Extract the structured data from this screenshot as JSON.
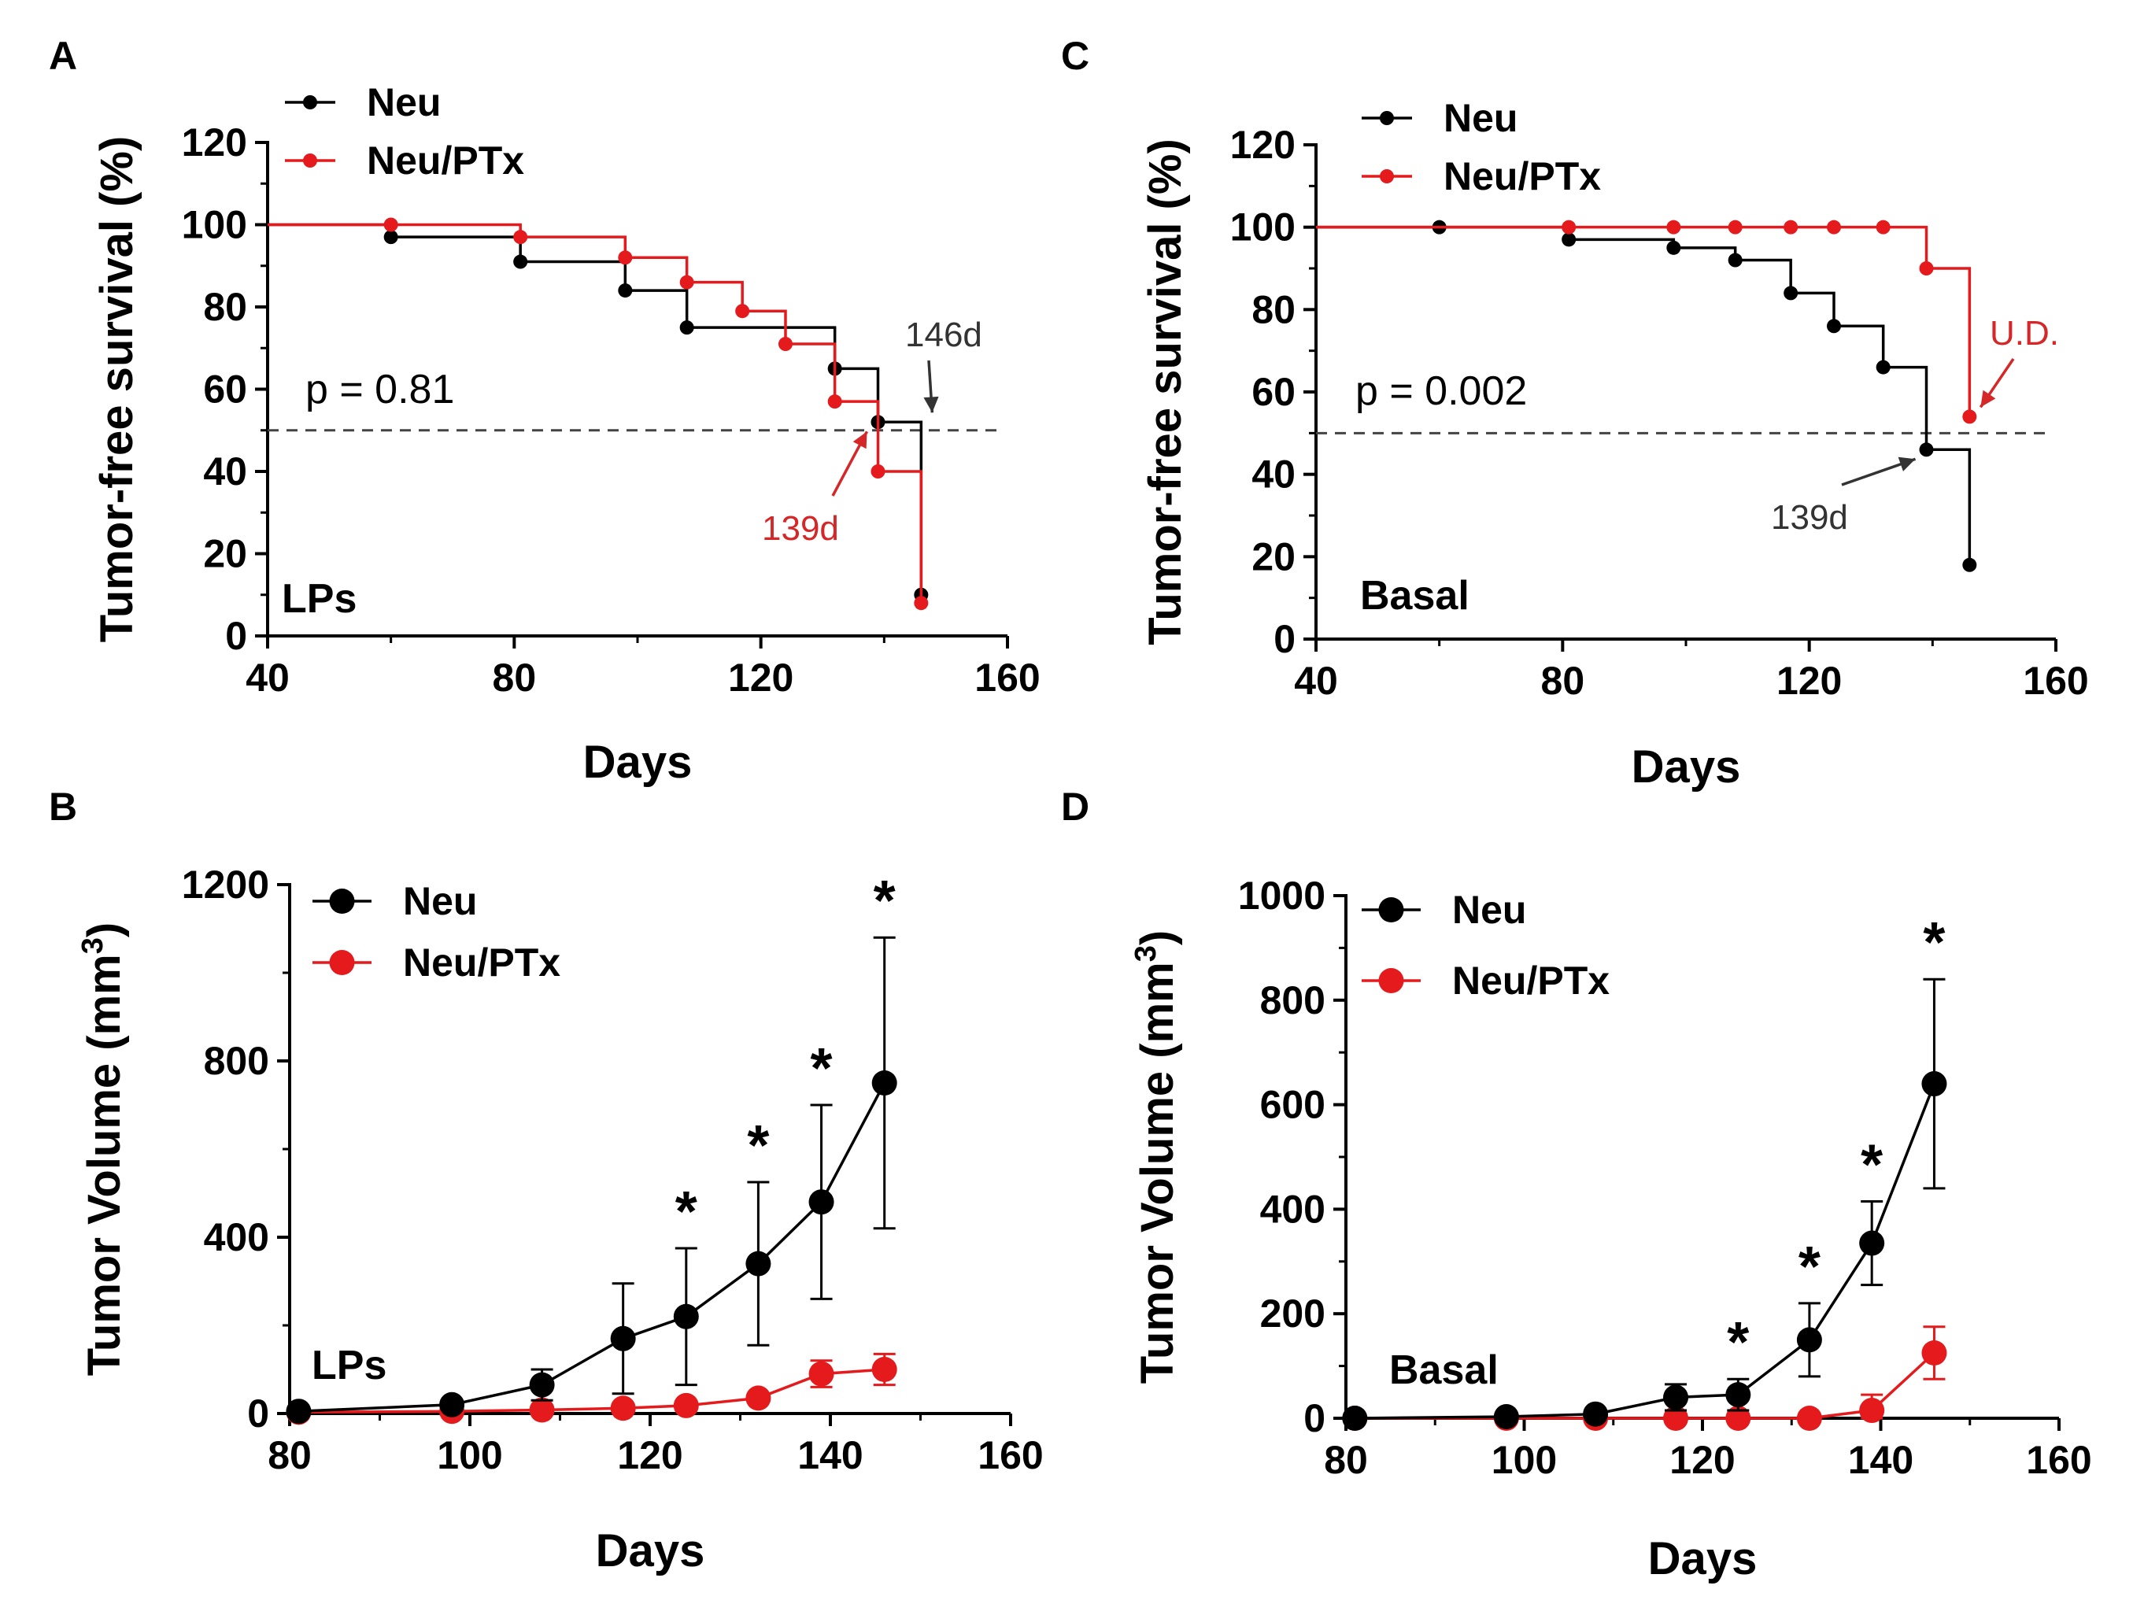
{
  "colors": {
    "neu": "#000000",
    "neu_ptx": "#e41a1c",
    "ref_line": "#444444",
    "annot_dark": "#333333",
    "annot_red": "#d62728"
  },
  "chart_data": [
    {
      "panel": "A",
      "type": "line",
      "style": "kaplan-meier step",
      "xlabel": "Days",
      "ylabel": "Tumor-free survival (%)",
      "xlim": [
        40,
        160
      ],
      "ylim": [
        0,
        120
      ],
      "xticks": [
        40,
        80,
        120,
        160
      ],
      "yticks": [
        0,
        20,
        40,
        60,
        80,
        100,
        120
      ],
      "legend": [
        "Neu",
        "Neu/PTx"
      ],
      "legend_position": "top-left",
      "reference_line_y": 50,
      "stat": "p = 0.81",
      "group_label": "LPs",
      "series": [
        {
          "name": "Neu",
          "color_key": "neu",
          "x": [
            60,
            81,
            98,
            108,
            132,
            139,
            146
          ],
          "y": [
            97,
            91,
            84,
            75,
            65,
            52,
            10
          ],
          "start": [
            40,
            100
          ]
        },
        {
          "name": "Neu/PTx",
          "color_key": "neu_ptx",
          "x": [
            60,
            81,
            98,
            108,
            117,
            124,
            132,
            139,
            146
          ],
          "y": [
            100,
            97,
            92,
            86,
            79,
            71,
            57,
            40,
            8
          ],
          "start": [
            40,
            100
          ]
        }
      ],
      "annotations": [
        {
          "text": "146d",
          "color_key": "annot_dark",
          "point": [
            146,
            52
          ]
        },
        {
          "text": "139d",
          "color_key": "annot_red",
          "point": [
            139,
            52
          ]
        }
      ]
    },
    {
      "panel": "C",
      "type": "line",
      "style": "kaplan-meier step",
      "xlabel": "Days",
      "ylabel": "Tumor-free survival (%)",
      "xlim": [
        40,
        160
      ],
      "ylim": [
        0,
        120
      ],
      "xticks": [
        40,
        80,
        120,
        160
      ],
      "yticks": [
        0,
        20,
        40,
        60,
        80,
        100,
        120
      ],
      "legend": [
        "Neu",
        "Neu/PTx"
      ],
      "legend_position": "top-left",
      "reference_line_y": 50,
      "stat": "p = 0.002",
      "group_label": "Basal",
      "series": [
        {
          "name": "Neu",
          "color_key": "neu",
          "x": [
            60,
            81,
            98,
            108,
            117,
            124,
            132,
            139,
            146
          ],
          "y": [
            100,
            97,
            95,
            92,
            84,
            76,
            66,
            46,
            18
          ],
          "start": [
            40,
            100
          ]
        },
        {
          "name": "Neu/PTx",
          "color_key": "neu_ptx",
          "x": [
            81,
            98,
            108,
            117,
            124,
            132,
            139,
            146
          ],
          "y": [
            100,
            100,
            100,
            100,
            100,
            100,
            90,
            54
          ],
          "start": [
            40,
            100
          ]
        }
      ],
      "annotations": [
        {
          "text": "U.D.",
          "color_key": "annot_red",
          "point": [
            146,
            54
          ]
        },
        {
          "text": "139d",
          "color_key": "annot_dark",
          "point": [
            139,
            46
          ]
        }
      ]
    },
    {
      "panel": "B",
      "type": "line",
      "style": "mean with error bars",
      "xlabel": "Days",
      "ylabel_main": "Tumor Volume (mm",
      "ylabel_sup": "3",
      "ylabel_end": ")",
      "xlim": [
        80,
        160
      ],
      "ylim": [
        0,
        1200
      ],
      "xticks": [
        80,
        100,
        120,
        140,
        160
      ],
      "yticks": [
        0,
        400,
        800,
        1200
      ],
      "legend": [
        "Neu",
        "Neu/PTx"
      ],
      "legend_position": "top-left",
      "group_label": "LPs",
      "significance_marker": "*",
      "significant_days": [
        124,
        132,
        139,
        146
      ],
      "series": [
        {
          "name": "Neu",
          "color_key": "neu",
          "x": [
            81,
            98,
            108,
            117,
            124,
            132,
            139,
            146
          ],
          "y": [
            5,
            20,
            65,
            170,
            220,
            340,
            480,
            750
          ],
          "err": [
            0,
            8,
            35,
            125,
            155,
            185,
            220,
            330
          ]
        },
        {
          "name": "Neu/PTx",
          "color_key": "neu_ptx",
          "x": [
            81,
            98,
            108,
            117,
            124,
            132,
            139,
            146
          ],
          "y": [
            3,
            5,
            8,
            12,
            18,
            35,
            90,
            100
          ],
          "err": [
            0,
            0,
            0,
            0,
            0,
            0,
            30,
            35
          ]
        }
      ]
    },
    {
      "panel": "D",
      "type": "line",
      "style": "mean with error bars",
      "xlabel": "Days",
      "ylabel_main": "Tumor Volume (mm",
      "ylabel_sup": "3",
      "ylabel_end": ")",
      "xlim": [
        80,
        160
      ],
      "ylim": [
        0,
        1000
      ],
      "xticks": [
        80,
        100,
        120,
        140,
        160
      ],
      "yticks": [
        0,
        200,
        400,
        600,
        800,
        1000
      ],
      "legend": [
        "Neu",
        "Neu/PTx"
      ],
      "legend_position": "top-left",
      "group_label": "Basal",
      "significance_marker": "*",
      "significant_days": [
        124,
        132,
        139,
        146
      ],
      "series": [
        {
          "name": "Neu",
          "color_key": "neu",
          "x": [
            81,
            98,
            108,
            117,
            124,
            132,
            139,
            146
          ],
          "y": [
            0,
            3,
            8,
            40,
            45,
            150,
            335,
            640
          ],
          "err": [
            0,
            0,
            5,
            25,
            30,
            70,
            80,
            200
          ]
        },
        {
          "name": "Neu/PTx",
          "color_key": "neu_ptx",
          "x": [
            81,
            98,
            108,
            117,
            124,
            132,
            139,
            146
          ],
          "y": [
            0,
            0,
            0,
            0,
            0,
            0,
            15,
            125
          ],
          "err": [
            0,
            0,
            0,
            0,
            0,
            0,
            30,
            50
          ]
        }
      ]
    }
  ]
}
